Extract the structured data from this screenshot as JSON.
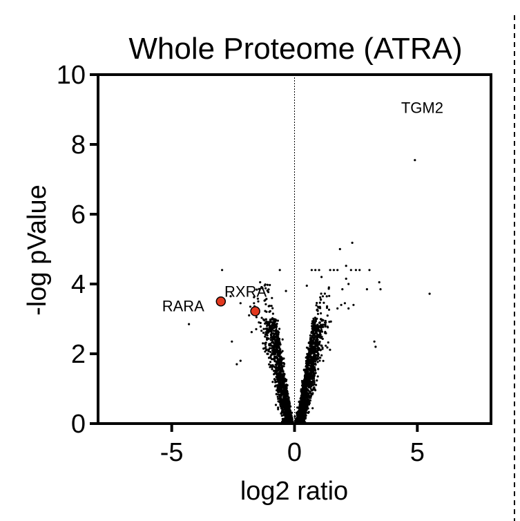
{
  "chart_data": {
    "type": "scatter",
    "title": "Whole Proteome (ATRA)",
    "xlabel": "log2 ratio",
    "ylabel": "-log pValue",
    "xlim": [
      -8,
      8
    ],
    "ylim": [
      0,
      10
    ],
    "xticks": [
      -5,
      0,
      5
    ],
    "xtick_labels": [
      "-5",
      "0",
      "5"
    ],
    "yticks": [
      0,
      2,
      4,
      6,
      8,
      10
    ],
    "ytick_labels": [
      "0",
      "2",
      "4",
      "6",
      "8",
      "10"
    ],
    "grid": false,
    "reference_line_x": 0,
    "point_color": "#000000",
    "highlight_color": "#e2391f",
    "highlighted": [
      {
        "label": "RARA",
        "x": -3.0,
        "y": 3.5
      },
      {
        "label": "RXRA",
        "x": -1.6,
        "y": 3.22
      }
    ],
    "annotations": [
      {
        "label": "TGM2",
        "x": 5.2,
        "y": 8.9
      }
    ],
    "outliers": [
      {
        "x": 4.9,
        "y": 7.55
      },
      {
        "x": 5.5,
        "y": 3.72
      },
      {
        "x": 2.35,
        "y": 5.18
      },
      {
        "x": 1.85,
        "y": 5.0
      },
      {
        "x": 2.1,
        "y": 4.52
      },
      {
        "x": 0.7,
        "y": 4.4
      },
      {
        "x": 0.85,
        "y": 4.4
      },
      {
        "x": 1.0,
        "y": 4.4
      },
      {
        "x": 1.45,
        "y": 4.4
      },
      {
        "x": 1.6,
        "y": 4.4
      },
      {
        "x": 1.75,
        "y": 4.4
      },
      {
        "x": 2.3,
        "y": 4.4
      },
      {
        "x": 2.5,
        "y": 4.4
      },
      {
        "x": 2.65,
        "y": 4.4
      },
      {
        "x": 3.05,
        "y": 4.4
      },
      {
        "x": 3.45,
        "y": 4.05
      },
      {
        "x": 3.5,
        "y": 3.85
      },
      {
        "x": 2.95,
        "y": 3.85
      },
      {
        "x": 2.1,
        "y": 4.15
      },
      {
        "x": 2.2,
        "y": 4.0
      },
      {
        "x": 1.95,
        "y": 3.85
      },
      {
        "x": 1.1,
        "y": 4.2
      },
      {
        "x": 1.4,
        "y": 3.9
      },
      {
        "x": 1.9,
        "y": 3.4
      },
      {
        "x": 2.05,
        "y": 3.45
      },
      {
        "x": 2.2,
        "y": 3.3
      },
      {
        "x": 2.4,
        "y": 3.4
      },
      {
        "x": 1.75,
        "y": 3.3
      },
      {
        "x": 3.3,
        "y": 2.2
      },
      {
        "x": 3.25,
        "y": 2.35
      },
      {
        "x": -4.3,
        "y": 2.85
      },
      {
        "x": -2.95,
        "y": 4.4
      },
      {
        "x": -0.6,
        "y": 4.4
      },
      {
        "x": -2.6,
        "y": 3.65
      },
      {
        "x": -2.2,
        "y": 3.45
      },
      {
        "x": -1.8,
        "y": 3.35
      },
      {
        "x": -1.55,
        "y": 3.05
      },
      {
        "x": -1.45,
        "y": 2.9
      },
      {
        "x": -1.85,
        "y": 3.1
      },
      {
        "x": -1.65,
        "y": 3.45
      },
      {
        "x": -2.55,
        "y": 2.35
      },
      {
        "x": -2.2,
        "y": 1.8
      },
      {
        "x": -2.35,
        "y": 1.7
      },
      {
        "x": -1.4,
        "y": 4.05
      },
      {
        "x": 0.5,
        "y": 3.95
      },
      {
        "x": -0.35,
        "y": 3.8
      }
    ],
    "cluster": {
      "count": 2600,
      "seed": 7,
      "y_max": 4.0
    }
  }
}
